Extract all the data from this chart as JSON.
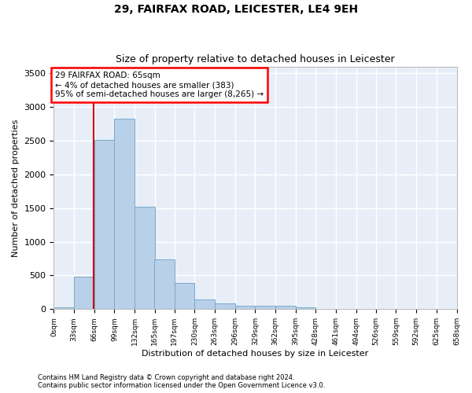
{
  "title": "29, FAIRFAX ROAD, LEICESTER, LE4 9EH",
  "subtitle": "Size of property relative to detached houses in Leicester",
  "xlabel": "Distribution of detached houses by size in Leicester",
  "ylabel": "Number of detached properties",
  "bar_color": "#b8d0e8",
  "bar_edge_color": "#7aaaca",
  "background_color": "#e8eef8",
  "grid_color": "#ffffff",
  "annotation_text": "29 FAIRFAX ROAD: 65sqm\n← 4% of detached houses are smaller (383)\n95% of semi-detached houses are larger (8,265) →",
  "vline_x": 65,
  "vline_color": "#cc0000",
  "footnote1": "Contains HM Land Registry data © Crown copyright and database right 2024.",
  "footnote2": "Contains public sector information licensed under the Open Government Licence v3.0.",
  "bin_edges": [
    0,
    33,
    66,
    99,
    132,
    165,
    197,
    230,
    263,
    296,
    329,
    362,
    395,
    428,
    461,
    494,
    526,
    559,
    592,
    625,
    658
  ],
  "bin_labels": [
    "0sqm",
    "33sqm",
    "66sqm",
    "99sqm",
    "132sqm",
    "165sqm",
    "197sqm",
    "230sqm",
    "263sqm",
    "296sqm",
    "329sqm",
    "362sqm",
    "395sqm",
    "428sqm",
    "461sqm",
    "494sqm",
    "526sqm",
    "559sqm",
    "592sqm",
    "625sqm",
    "658sqm"
  ],
  "bar_heights": [
    25,
    480,
    2510,
    2820,
    1520,
    740,
    390,
    140,
    80,
    50,
    50,
    55,
    30,
    0,
    0,
    0,
    0,
    0,
    0,
    0
  ],
  "ylim": [
    0,
    3600
  ],
  "yticks": [
    0,
    500,
    1000,
    1500,
    2000,
    2500,
    3000,
    3500
  ]
}
